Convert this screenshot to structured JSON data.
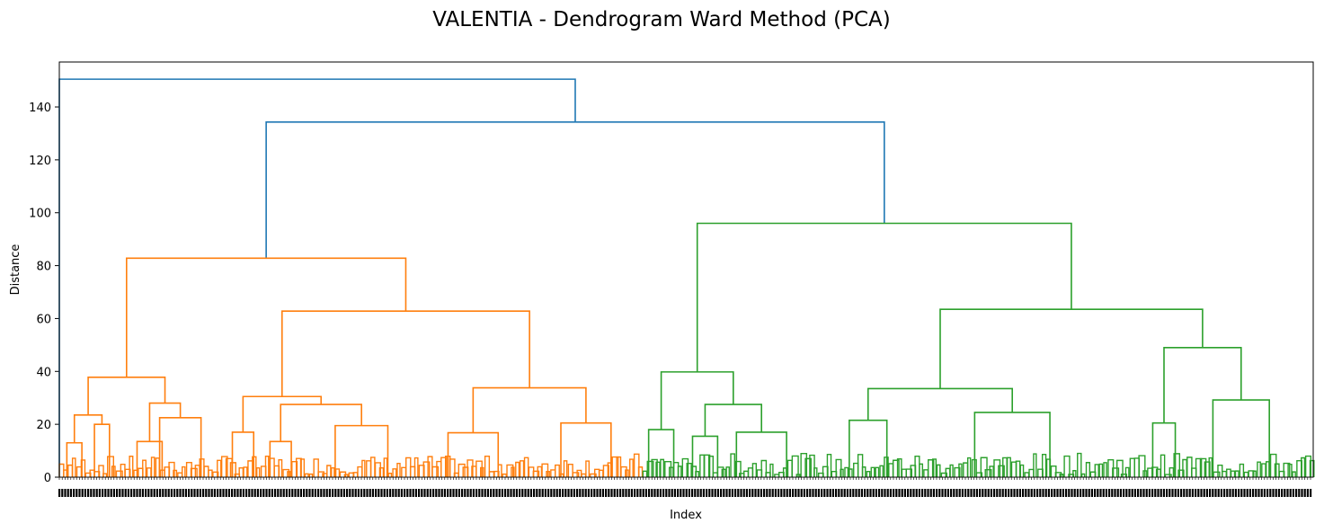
{
  "chart_data": {
    "type": "dendrogram",
    "title": "VALENTIA - Dendrogram Ward Method (PCA)",
    "xlabel": "Index",
    "ylabel": "Distance",
    "ylim": [
      0,
      157
    ],
    "yticks": [
      0,
      20,
      40,
      60,
      80,
      100,
      120,
      140
    ],
    "leaf_index_range": [
      0,
      1
    ],
    "grid": false,
    "colors": {
      "above_threshold": "#1f77b4",
      "cluster_1": "#ff7f0e",
      "cluster_2": "#2ca02c",
      "frame": "#000000",
      "background": "#ffffff"
    },
    "merges": [
      {
        "id": "root",
        "height": 150.5,
        "color": "above_threshold",
        "left": {
          "leaf": 0.0
        },
        "right": "n_top2"
      },
      {
        "id": "n_top2",
        "height": 134.3,
        "color": "above_threshold",
        "left": "o_root",
        "right": "g_root"
      },
      {
        "id": "o_root",
        "height": 82.8,
        "color": "cluster_1",
        "left": "o_A",
        "right": "o_B"
      },
      {
        "id": "o_A",
        "height": 37.8,
        "color": "cluster_1",
        "left": "o_A1",
        "right": "o_A2"
      },
      {
        "id": "o_A1",
        "height": 23.5,
        "color": "cluster_1",
        "left": "o_A1a",
        "right": "o_A1b"
      },
      {
        "id": "o_A1a",
        "height": 13.0,
        "color": "cluster_1",
        "left": {
          "leaf": 0.006
        },
        "right": {
          "leaf": 0.018
        }
      },
      {
        "id": "o_A1b",
        "height": 20.0,
        "color": "cluster_1",
        "left": {
          "leaf": 0.028
        },
        "right": {
          "leaf": 0.04
        }
      },
      {
        "id": "o_A2",
        "height": 28.0,
        "color": "cluster_1",
        "left": "o_A2a",
        "right": "o_A2b"
      },
      {
        "id": "o_A2a",
        "height": 13.5,
        "color": "cluster_1",
        "left": {
          "leaf": 0.062
        },
        "right": {
          "leaf": 0.082
        }
      },
      {
        "id": "o_A2b",
        "height": 22.5,
        "color": "cluster_1",
        "left": {
          "leaf": 0.08
        },
        "right": {
          "leaf": 0.113
        }
      },
      {
        "id": "o_B",
        "height": 62.8,
        "color": "cluster_1",
        "left": "o_B1",
        "right": "o_B2"
      },
      {
        "id": "o_B1",
        "height": 30.5,
        "color": "cluster_1",
        "left": "o_B1a",
        "right": "o_B1b"
      },
      {
        "id": "o_B1a",
        "height": 17.0,
        "color": "cluster_1",
        "left": {
          "leaf": 0.138
        },
        "right": {
          "leaf": 0.155
        }
      },
      {
        "id": "o_B1b",
        "height": 27.5,
        "color": "cluster_1",
        "left": "o_B1b1",
        "right": "o_B1b2"
      },
      {
        "id": "o_B1b1",
        "height": 13.5,
        "color": "cluster_1",
        "left": {
          "leaf": 0.168
        },
        "right": {
          "leaf": 0.185
        }
      },
      {
        "id": "o_B1b2",
        "height": 19.5,
        "color": "cluster_1",
        "left": {
          "leaf": 0.22
        },
        "right": {
          "leaf": 0.262
        }
      },
      {
        "id": "o_B2",
        "height": 33.8,
        "color": "cluster_1",
        "left": "o_B2a",
        "right": "o_B2b"
      },
      {
        "id": "o_B2a",
        "height": 16.8,
        "color": "cluster_1",
        "left": {
          "leaf": 0.31
        },
        "right": {
          "leaf": 0.35
        }
      },
      {
        "id": "o_B2b",
        "height": 20.5,
        "color": "cluster_1",
        "left": {
          "leaf": 0.4
        },
        "right": {
          "leaf": 0.44
        }
      },
      {
        "id": "g_root",
        "height": 96.0,
        "color": "cluster_2",
        "left": "g_A",
        "right": "g_B"
      },
      {
        "id": "g_A",
        "height": 39.8,
        "color": "cluster_2",
        "left": "g_A1",
        "right": "g_A2"
      },
      {
        "id": "g_A1",
        "height": 18.0,
        "color": "cluster_2",
        "left": {
          "leaf": 0.47
        },
        "right": {
          "leaf": 0.49
        }
      },
      {
        "id": "g_A2",
        "height": 27.5,
        "color": "cluster_2",
        "left": "g_A2a",
        "right": "g_A2b"
      },
      {
        "id": "g_A2a",
        "height": 15.5,
        "color": "cluster_2",
        "left": {
          "leaf": 0.505
        },
        "right": {
          "leaf": 0.525
        }
      },
      {
        "id": "g_A2b",
        "height": 17.0,
        "color": "cluster_2",
        "left": {
          "leaf": 0.54
        },
        "right": {
          "leaf": 0.58
        }
      },
      {
        "id": "g_B",
        "height": 63.5,
        "color": "cluster_2",
        "left": "g_B1",
        "right": "g_B2"
      },
      {
        "id": "g_B1",
        "height": 33.5,
        "color": "cluster_2",
        "left": "g_B1a",
        "right": "g_B1b"
      },
      {
        "id": "g_B1a",
        "height": 21.5,
        "color": "cluster_2",
        "left": {
          "leaf": 0.63
        },
        "right": {
          "leaf": 0.66
        }
      },
      {
        "id": "g_B1b",
        "height": 24.5,
        "color": "cluster_2",
        "left": {
          "leaf": 0.73
        },
        "right": {
          "leaf": 0.79
        }
      },
      {
        "id": "g_B2",
        "height": 49.0,
        "color": "cluster_2",
        "left": "g_B2a",
        "right": "g_B2b"
      },
      {
        "id": "g_B2a",
        "height": 20.5,
        "color": "cluster_2",
        "left": {
          "leaf": 0.872
        },
        "right": {
          "leaf": 0.89
        }
      },
      {
        "id": "g_B2b",
        "height": 29.2,
        "color": "cluster_2",
        "left": {
          "leaf": 0.92
        },
        "right": {
          "leaf": 0.965
        }
      }
    ]
  }
}
